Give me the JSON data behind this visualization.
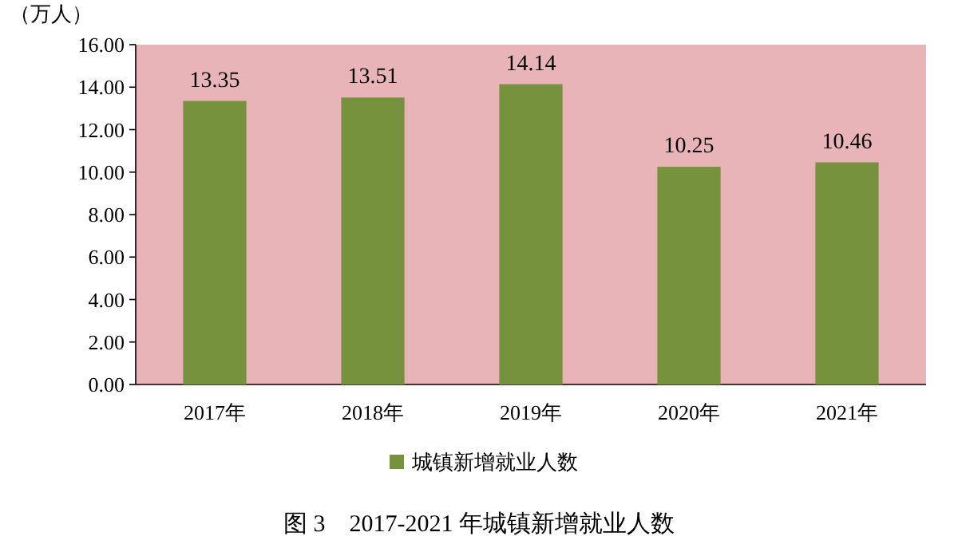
{
  "chart_data": {
    "type": "bar",
    "title": "图 3　2017-2021 年城镇新增就业人数",
    "ylabel": "（万人）",
    "categories": [
      "2017年",
      "2018年",
      "2019年",
      "2020年",
      "2021年"
    ],
    "series": [
      {
        "name": "城镇新增就业人数",
        "color": "#76923c",
        "values": [
          13.35,
          13.51,
          14.14,
          10.25,
          10.46
        ]
      }
    ],
    "ylim": [
      0,
      16
    ],
    "yticks": [
      {
        "value": 0,
        "label": "0.00"
      },
      {
        "value": 2,
        "label": "2.00"
      },
      {
        "value": 4,
        "label": "4.00"
      },
      {
        "value": 6,
        "label": "6.00"
      },
      {
        "value": 8,
        "label": "8.00"
      },
      {
        "value": 10,
        "label": "10.00"
      },
      {
        "value": 12,
        "label": "12.00"
      },
      {
        "value": 14,
        "label": "14.00"
      },
      {
        "value": 16,
        "label": "16.00"
      }
    ],
    "data_labels": true,
    "legend": "bottom"
  }
}
